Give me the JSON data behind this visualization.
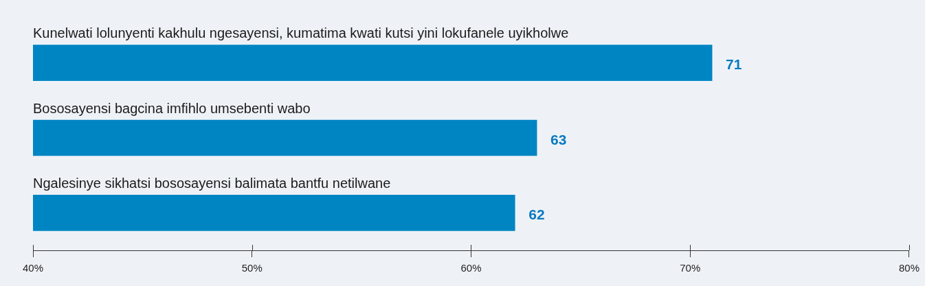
{
  "chart_data": {
    "type": "bar",
    "orientation": "horizontal",
    "categories": [
      "Kunelwati lolunyenti kakhulu ngesayensi, kumatima kwati kutsi yini lokufanele uyikholwe",
      "Bososayensi bagcina imfihlo umsebenti wabo",
      "Ngalesinye sikhatsi bososayensi balimata bantfu netilwane"
    ],
    "values": [
      71,
      63,
      62
    ],
    "color": "#0085c3",
    "xlim": [
      40,
      80
    ],
    "xticks": [
      {
        "value": 40,
        "label": "40%"
      },
      {
        "value": 50,
        "label": "50%"
      },
      {
        "value": 60,
        "label": "60%"
      },
      {
        "value": 70,
        "label": "70%"
      },
      {
        "value": 80,
        "label": "80%"
      }
    ],
    "data_labels": true,
    "grid": false,
    "legend": false
  }
}
